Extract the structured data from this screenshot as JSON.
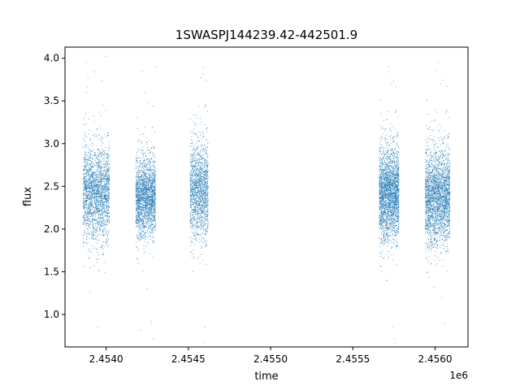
{
  "chart_data": {
    "type": "scatter",
    "title": "1SWASPJ144239.42-442501.9",
    "xlabel": "time",
    "ylabel": "flux",
    "x_offset_label": "1e6",
    "xlim": [
      2.45375,
      2.4562
    ],
    "ylim": [
      0.62,
      4.13
    ],
    "x_ticks": [
      2.454,
      2.4545,
      2.455,
      2.4555,
      2.456
    ],
    "x_tick_labels": [
      "2.4540",
      "2.4545",
      "2.4550",
      "2.4555",
      "2.4560"
    ],
    "y_ticks": [
      1.0,
      1.5,
      2.0,
      2.5,
      3.0,
      3.5,
      4.0
    ],
    "y_tick_labels": [
      "1.0",
      "1.5",
      "2.0",
      "2.5",
      "3.0",
      "3.5",
      "4.0"
    ],
    "grid": false,
    "marker_color": "#1f77b4",
    "series": [
      {
        "points": [
          [
            2.45387,
            2.4
          ],
          [
            2.45388,
            3.95
          ],
          [
            2.45388,
            3.6
          ],
          [
            2.45388,
            2.1
          ],
          [
            2.45389,
            2.75
          ],
          [
            2.45389,
            1.95
          ],
          [
            2.4539,
            3.05
          ],
          [
            2.4539,
            2.35
          ],
          [
            2.45391,
            2.55
          ],
          [
            2.45392,
            2.2
          ],
          [
            2.45393,
            2.45
          ],
          [
            2.45394,
            1.65
          ],
          [
            2.45395,
            2.6
          ],
          [
            2.45395,
            0.85
          ],
          [
            2.45396,
            3.2
          ],
          [
            2.45397,
            2.3
          ],
          [
            2.45398,
            1.8
          ],
          [
            2.45399,
            2.5
          ],
          [
            2.454,
            2.15
          ],
          [
            2.45401,
            2.65
          ],
          [
            2.45418,
            2.3
          ],
          [
            2.45419,
            2.55
          ],
          [
            2.4542,
            2.1
          ],
          [
            2.45421,
            0.82
          ],
          [
            2.45421,
            2.8
          ],
          [
            2.45422,
            3.85
          ],
          [
            2.45423,
            2.4
          ],
          [
            2.45424,
            2.2
          ],
          [
            2.45425,
            1.3
          ],
          [
            2.45426,
            2.6
          ],
          [
            2.45427,
            2.25
          ],
          [
            2.45428,
            2.9
          ],
          [
            2.45429,
            1.9
          ],
          [
            2.4543,
            2.45
          ],
          [
            2.4543,
            3.9
          ],
          [
            2.45452,
            2.4
          ],
          [
            2.45453,
            2.75
          ],
          [
            2.45454,
            2.05
          ],
          [
            2.45455,
            3.3
          ],
          [
            2.45456,
            2.3
          ],
          [
            2.45457,
            1.6
          ],
          [
            2.45458,
            2.6
          ],
          [
            2.45459,
            3.9
          ],
          [
            2.4546,
            0.85
          ],
          [
            2.45461,
            2.2
          ],
          [
            2.45567,
            2.3
          ],
          [
            2.45568,
            2.55
          ],
          [
            2.45569,
            2.1
          ],
          [
            2.4557,
            2.7
          ],
          [
            2.45571,
            1.4
          ],
          [
            2.45572,
            3.9
          ],
          [
            2.45572,
            2.4
          ],
          [
            2.45573,
            2.2
          ],
          [
            2.45574,
            0.85
          ],
          [
            2.45575,
            2.85
          ],
          [
            2.45576,
            2.25
          ],
          [
            2.45577,
            1.8
          ],
          [
            2.45577,
            2.5
          ],
          [
            2.45595,
            2.3
          ],
          [
            2.45596,
            2.6
          ],
          [
            2.45597,
            1.95
          ],
          [
            2.45598,
            2.8
          ],
          [
            2.45599,
            2.45
          ],
          [
            2.456,
            3.4
          ],
          [
            2.45601,
            2.1
          ],
          [
            2.45602,
            3.95
          ],
          [
            2.45603,
            2.55
          ],
          [
            2.45604,
            1.2
          ],
          [
            2.45605,
            2.2
          ],
          [
            2.45606,
            0.9
          ],
          [
            2.45607,
            2.7
          ],
          [
            2.45608,
            2.35
          ]
        ]
      }
    ],
    "clusters": [
      {
        "x_min": 2.45386,
        "x_max": 2.45402,
        "median": 2.42,
        "spread": 0.27,
        "count": 2200
      },
      {
        "x_min": 2.45418,
        "x_max": 2.4543,
        "median": 2.38,
        "spread": 0.23,
        "count": 2100
      },
      {
        "x_min": 2.45451,
        "x_max": 2.45462,
        "median": 2.45,
        "spread": 0.28,
        "count": 1600
      },
      {
        "x_min": 2.45566,
        "x_max": 2.45578,
        "median": 2.42,
        "spread": 0.27,
        "count": 2600
      },
      {
        "x_min": 2.45594,
        "x_max": 2.45609,
        "median": 2.38,
        "spread": 0.28,
        "count": 2800
      }
    ]
  }
}
